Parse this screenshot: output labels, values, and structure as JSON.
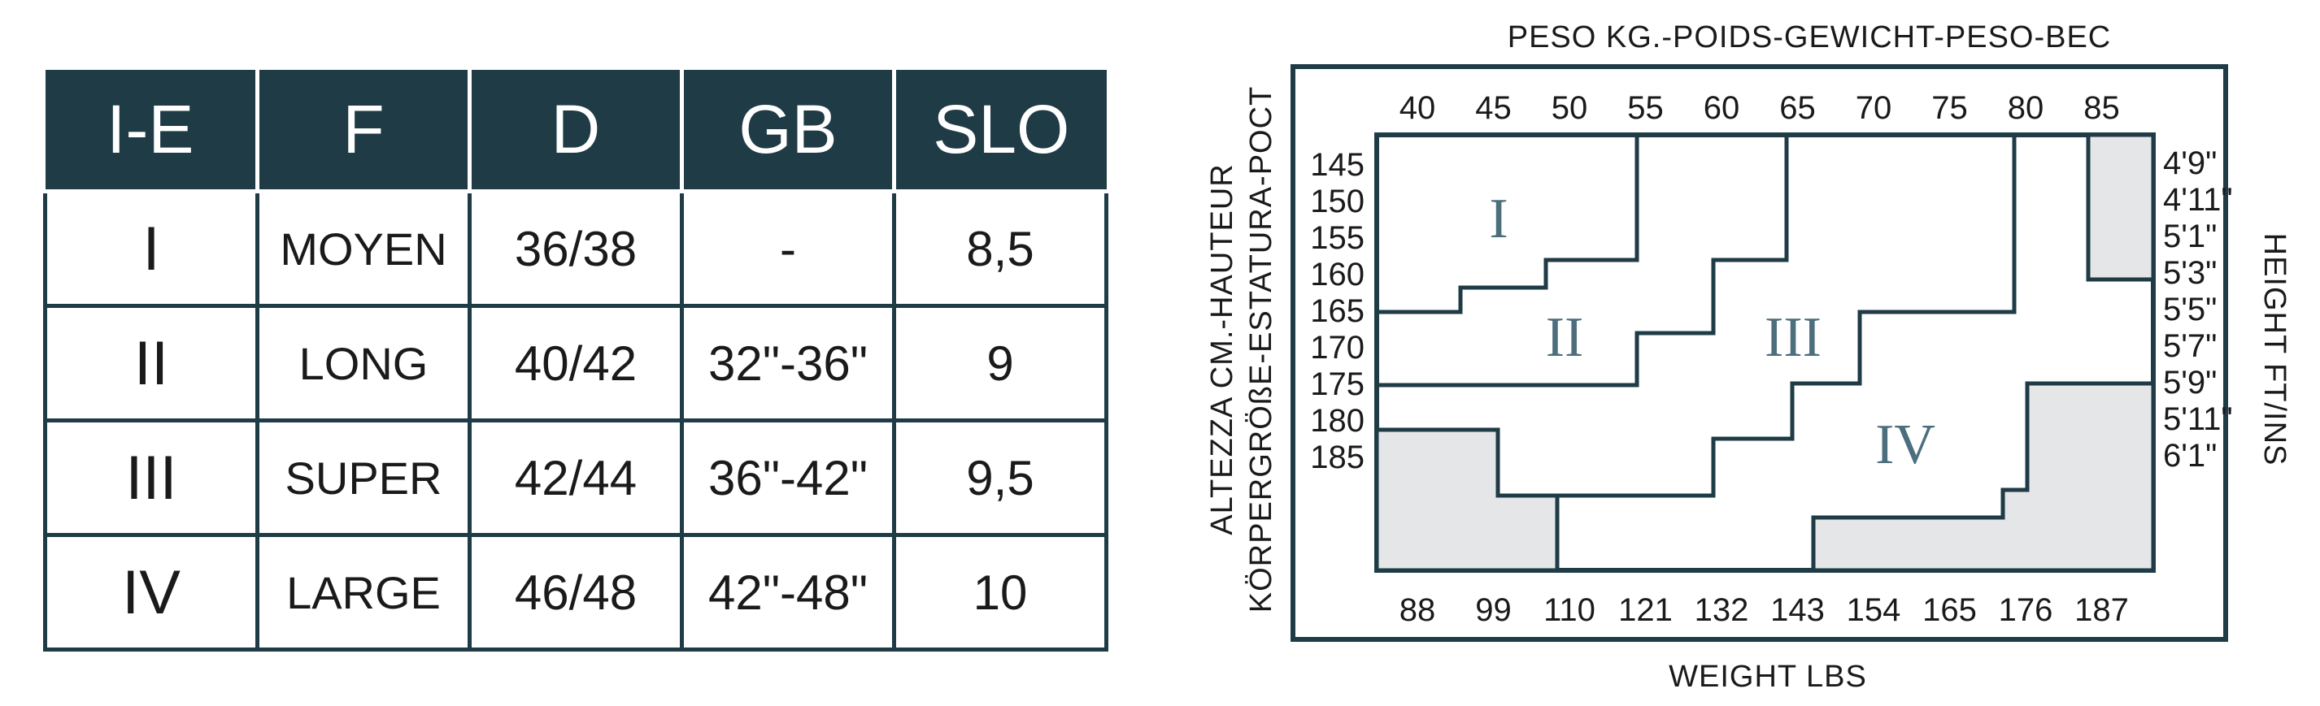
{
  "table": {
    "headers": [
      "I-E",
      "F",
      "D",
      "GB",
      "SLO"
    ],
    "rows": [
      [
        "I",
        "MOYEN",
        "36/38",
        "-",
        "8,5"
      ],
      [
        "II",
        "LONG",
        "40/42",
        "32\"-36\"",
        "9"
      ],
      [
        "III",
        "SUPER",
        "42/44",
        "36\"-42\"",
        "9,5"
      ],
      [
        "IV",
        "LARGE",
        "46/48",
        "42\"-48\"",
        "10"
      ]
    ]
  },
  "diagram": {
    "top_title": "PESO KG.-POIDS-GEWICHT-PESO-BEC",
    "bottom_title": "WEIGHT LBS",
    "left_title_line1": "ALTEZZA CM.-HAUTEUR",
    "left_title_line2": "KÖRPERGRÖßE-ESTATURA-POCT",
    "right_title": "HEIGHT FT/INS",
    "kg_ticks": [
      "40",
      "45",
      "50",
      "55",
      "60",
      "65",
      "70",
      "75",
      "80",
      "85"
    ],
    "lbs_ticks": [
      "88",
      "99",
      "110",
      "121",
      "132",
      "143",
      "154",
      "165",
      "176",
      "187"
    ],
    "cm_ticks": [
      "145",
      "150",
      "155",
      "160",
      "165",
      "170",
      "175",
      "180",
      "185"
    ],
    "ftin_ticks": [
      "4'9\"",
      "4'11\"",
      "5'1\"",
      "5'3\"",
      "5'5\"",
      "5'7\"",
      "5'9\"",
      "5'11\"",
      "6'1\""
    ],
    "regions": [
      "I",
      "II",
      "III",
      "IV"
    ],
    "colors": {
      "line": "#1e3b46",
      "shade": "#e4e6e8",
      "text": "#1a1a1a"
    }
  }
}
